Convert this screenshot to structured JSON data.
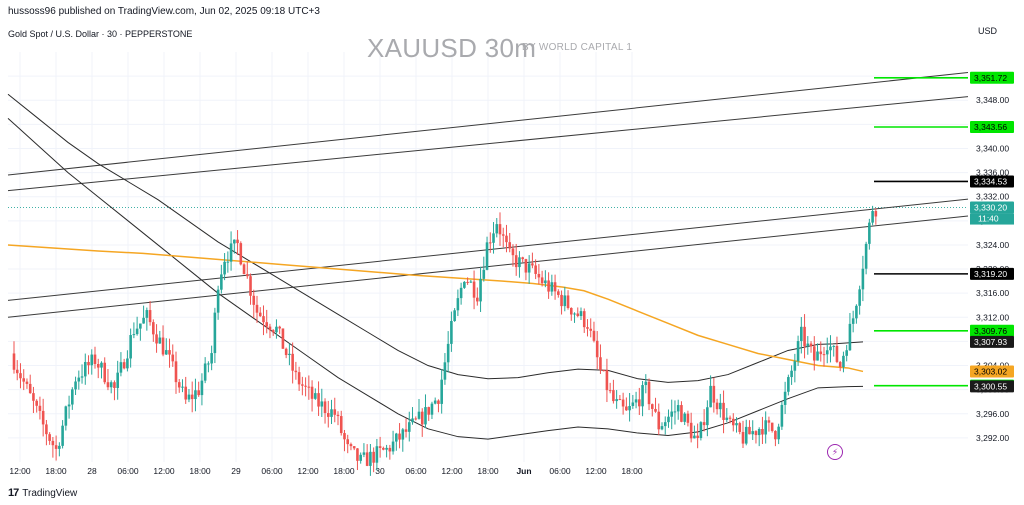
{
  "header": {
    "publisher": "hussoss96 published on TradingView.com, Jun 02, 2025 09:18 UTC+3",
    "symbol_legend": "Gold Spot / U.S. Dollar · 30 · PEPPERSTONE",
    "watermark_title": "XAUUSD 30m",
    "watermark_subtitle": "BY WORLD CAPITAL 1",
    "currency": "USD"
  },
  "footer": {
    "brand": "TradingView",
    "logo_icon": "tradingview-logo-icon"
  },
  "colors": {
    "up": "#26a69a",
    "down": "#ef5350",
    "orange_ma": "#f5a623",
    "level_green": "#00e600",
    "level_black": "#000000",
    "channel": "#3b3b3b",
    "grid": "#f0f3fa",
    "dotted": "#26a69a"
  },
  "chart_data": {
    "type": "candlestick",
    "title": "",
    "xlabel": "",
    "ylabel": "",
    "ylim": [
      3288,
      3356
    ],
    "y_ticks": [
      "3,292.00",
      "3,296.00",
      "3,300.00",
      "3,304.00",
      "3,308.00",
      "3,312.00",
      "3,316.00",
      "3,320.00",
      "3,324.00",
      "3,328.00",
      "3,332.00",
      "3,336.00",
      "3,340.00",
      "3,344.00",
      "3,348.00",
      "3,352.00"
    ],
    "y_tick_values": [
      3292,
      3296,
      3300,
      3304,
      3308,
      3312,
      3316,
      3320,
      3324,
      3328,
      3332,
      3336,
      3340,
      3344,
      3348,
      3352
    ],
    "x_ticks": [
      "12:00",
      "18:00",
      "28",
      "06:00",
      "12:00",
      "18:00",
      "29",
      "06:00",
      "12:00",
      "18:00",
      "30",
      "06:00",
      "12:00",
      "18:00",
      "Jun",
      "06:00",
      "12:00",
      "18:00"
    ],
    "x_tick_bold": [
      false,
      false,
      false,
      false,
      false,
      false,
      false,
      false,
      false,
      false,
      false,
      false,
      false,
      false,
      true,
      false,
      false,
      false
    ],
    "bars_per_day": 48,
    "last_price": 3330.2,
    "last_price_label": "3,330.20",
    "countdown_label": "11:40",
    "candles": [],
    "horizontal_levels": [
      {
        "price": 3351.72,
        "label": "3,351.72",
        "color": "green"
      },
      {
        "price": 3343.56,
        "label": "3,343.56",
        "color": "green"
      },
      {
        "price": 3334.53,
        "label": "3,334.53",
        "color": "black"
      },
      {
        "price": 3319.2,
        "label": "3,319.20",
        "color": "black"
      },
      {
        "price": 3309.76,
        "label": "3,309.76",
        "color": "green"
      },
      {
        "price": 3300.66,
        "label": "3,300.66",
        "color": "green"
      }
    ],
    "ma_labels": [
      {
        "price": 3307.93,
        "label": "3,307.93",
        "style": "black"
      },
      {
        "price": 3303.02,
        "label": "3,303.02",
        "style": "orange"
      },
      {
        "price": 3300.55,
        "label": "3,300.55",
        "style": "black"
      }
    ],
    "moving_average_orange": [
      [
        0,
        3324
      ],
      [
        15,
        3323.5
      ],
      [
        30,
        3323
      ],
      [
        45,
        3322.6
      ],
      [
        60,
        3322
      ],
      [
        75,
        3321.4
      ],
      [
        90,
        3320.8
      ],
      [
        105,
        3320.2
      ],
      [
        120,
        3319.6
      ],
      [
        135,
        3319
      ],
      [
        150,
        3318.5
      ],
      [
        165,
        3318
      ],
      [
        175,
        3317.6
      ],
      [
        185,
        3317
      ],
      [
        192,
        3316.4
      ],
      [
        200,
        3315
      ],
      [
        210,
        3313
      ],
      [
        220,
        3311
      ],
      [
        230,
        3309
      ],
      [
        240,
        3307.5
      ],
      [
        250,
        3306
      ],
      [
        260,
        3305
      ],
      [
        270,
        3304
      ],
      [
        280,
        3303.6
      ],
      [
        285,
        3303.02
      ]
    ],
    "upper_band": [
      [
        0,
        3349
      ],
      [
        10,
        3345
      ],
      [
        20,
        3341
      ],
      [
        30,
        3337.5
      ],
      [
        40,
        3334.5
      ],
      [
        50,
        3331.5
      ],
      [
        60,
        3328
      ],
      [
        70,
        3324.5
      ],
      [
        80,
        3321.5
      ],
      [
        90,
        3318.5
      ],
      [
        100,
        3315.5
      ],
      [
        110,
        3312.5
      ],
      [
        120,
        3309.5
      ],
      [
        130,
        3306.5
      ],
      [
        140,
        3304
      ],
      [
        150,
        3302.5
      ],
      [
        160,
        3301.8
      ],
      [
        170,
        3302
      ],
      [
        180,
        3302.8
      ],
      [
        190,
        3303.4
      ],
      [
        200,
        3303.2
      ],
      [
        210,
        3301.8
      ],
      [
        220,
        3301.2
      ],
      [
        230,
        3301.5
      ],
      [
        240,
        3302.5
      ],
      [
        250,
        3304.5
      ],
      [
        260,
        3306.5
      ],
      [
        270,
        3307.5
      ],
      [
        275,
        3307.6
      ],
      [
        285,
        3307.93
      ]
    ],
    "lower_band": [
      [
        0,
        3345
      ],
      [
        10,
        3340.5
      ],
      [
        20,
        3336
      ],
      [
        30,
        3332
      ],
      [
        40,
        3328
      ],
      [
        50,
        3324
      ],
      [
        60,
        3320
      ],
      [
        70,
        3316
      ],
      [
        80,
        3312.5
      ],
      [
        90,
        3309
      ],
      [
        100,
        3305.5
      ],
      [
        110,
        3302
      ],
      [
        120,
        3299
      ],
      [
        130,
        3296
      ],
      [
        140,
        3293.5
      ],
      [
        150,
        3292.2
      ],
      [
        160,
        3291.8
      ],
      [
        170,
        3292.5
      ],
      [
        180,
        3293.2
      ],
      [
        190,
        3293.8
      ],
      [
        200,
        3293.5
      ],
      [
        210,
        3292.8
      ],
      [
        220,
        3292.4
      ],
      [
        230,
        3293
      ],
      [
        240,
        3294.5
      ],
      [
        250,
        3296.5
      ],
      [
        260,
        3298.5
      ],
      [
        270,
        3300.3
      ],
      [
        280,
        3300.5
      ],
      [
        285,
        3300.55
      ]
    ],
    "trend_lines": [
      {
        "start": [
          0,
          3335.6
        ],
        "end": [
          320,
          3352.6
        ]
      },
      {
        "start": [
          0,
          3333.0
        ],
        "end": [
          320,
          3348.6
        ]
      },
      {
        "start": [
          0,
          3314.8
        ],
        "end": [
          320,
          3331.6
        ]
      },
      {
        "start": [
          0,
          3312.0
        ],
        "end": [
          320,
          3328.8
        ]
      }
    ],
    "arrow_segments": [
      {
        "price": 3351.72,
        "from": 290,
        "to": 320
      },
      {
        "price": 3343.56,
        "from": 290,
        "to": 320
      },
      {
        "price": 3334.53,
        "from": 290,
        "to": 320
      },
      {
        "price": 3319.2,
        "from": 290,
        "to": 320
      },
      {
        "price": 3309.76,
        "from": 290,
        "to": 320
      },
      {
        "price": 3300.66,
        "from": 290,
        "to": 320
      }
    ]
  }
}
